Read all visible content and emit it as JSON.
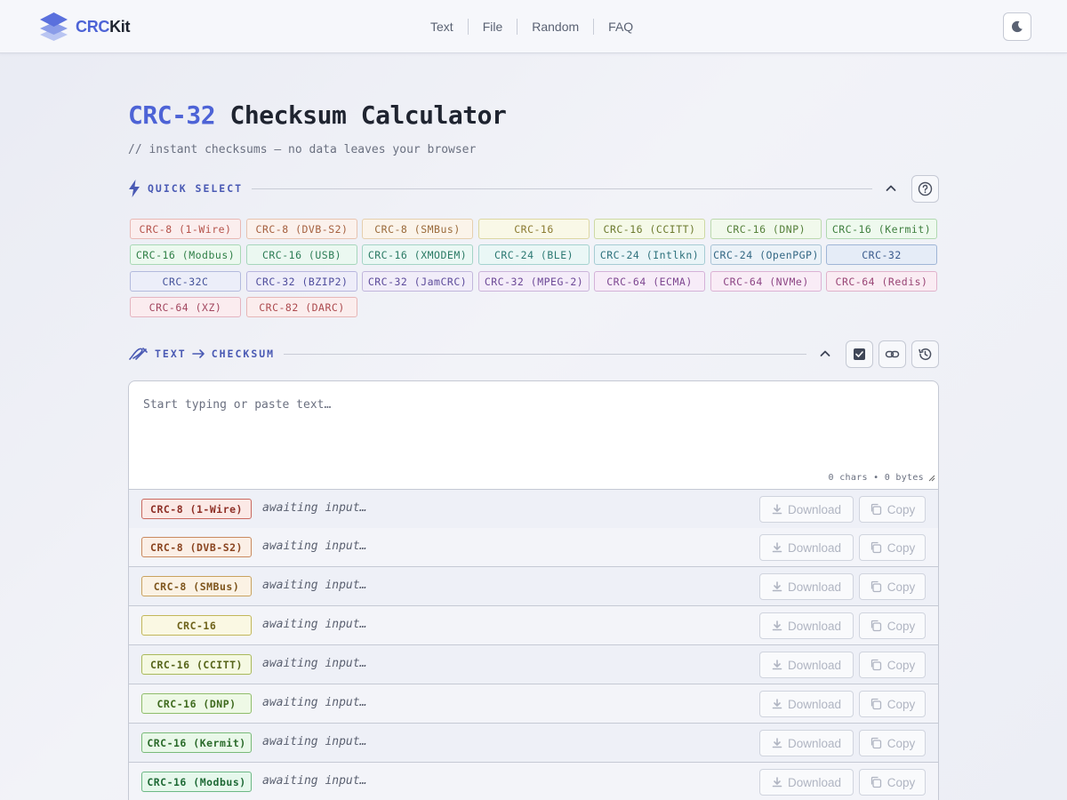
{
  "app": {
    "logo_a": "CRC",
    "logo_b": "Kit"
  },
  "nav": [
    "Text",
    "File",
    "Random",
    "FAQ"
  ],
  "page": {
    "title_accent": "CRC-32",
    "title_rest": "Checksum Calculator",
    "subtitle": "// instant checksums — no data leaves your browser"
  },
  "quick_select": {
    "label": "QUICK SELECT",
    "chips": [
      {
        "label": "CRC-8 (1-Wire)",
        "color": "#b5524a",
        "bg": "#fbeeee",
        "border": "#e8b8b4"
      },
      {
        "label": "CRC-8 (DVB-S2)",
        "color": "#a5603f",
        "bg": "#fbf1ec",
        "border": "#e7c3b0"
      },
      {
        "label": "CRC-8 (SMBus)",
        "color": "#9a6a3a",
        "bg": "#fbf4ea",
        "border": "#e5cfae"
      },
      {
        "label": "CRC-16",
        "color": "#8a7a30",
        "bg": "#f9f8e7",
        "border": "#dcd7a2"
      },
      {
        "label": "CRC-16 (CCITT)",
        "color": "#6c7a2e",
        "bg": "#f5f9e8",
        "border": "#cdd9a4"
      },
      {
        "label": "CRC-16 (DNP)",
        "color": "#55803a",
        "bg": "#f1f9ec",
        "border": "#bcd9ae"
      },
      {
        "label": "CRC-16 (Kermit)",
        "color": "#3f7f3f",
        "bg": "#eef9ee",
        "border": "#b0d8b0"
      },
      {
        "label": "CRC-16 (Modbus)",
        "color": "#2f7f46",
        "bg": "#ecf9ef",
        "border": "#a8d8b5"
      },
      {
        "label": "CRC-16 (USB)",
        "color": "#2c7c55",
        "bg": "#ebf8f1",
        "border": "#a6d6bc"
      },
      {
        "label": "CRC-16 (XMODEM)",
        "color": "#2a7a64",
        "bg": "#eaf8f4",
        "border": "#a4d4c6"
      },
      {
        "label": "CRC-24 (BLE)",
        "color": "#2b7872",
        "bg": "#eaf7f6",
        "border": "#a4d2cf"
      },
      {
        "label": "CRC-24 (Intlkn)",
        "color": "#2d717c",
        "bg": "#eaf5f8",
        "border": "#a6ccd4"
      },
      {
        "label": "CRC-24 (OpenPGP)",
        "color": "#336784",
        "bg": "#ebf2f8",
        "border": "#a9c3d6"
      },
      {
        "label": "CRC-32",
        "color": "#3a5a8c",
        "bg": "#e5ecf7",
        "border": "#9fb5d6"
      },
      {
        "label": "CRC-32C",
        "color": "#44529a",
        "bg": "#eceef9",
        "border": "#b3badd"
      },
      {
        "label": "CRC-32 (BZIP2)",
        "color": "#4e4c9c",
        "bg": "#eeedf9",
        "border": "#b8b6de"
      },
      {
        "label": "CRC-32 (JamCRC)",
        "color": "#5c4a9a",
        "bg": "#f1edf9",
        "border": "#c1b6dc"
      },
      {
        "label": "CRC-32 (MPEG-2)",
        "color": "#6c4896",
        "bg": "#f4ecf9",
        "border": "#cbb4da"
      },
      {
        "label": "CRC-64 (ECMA)",
        "color": "#7d4690",
        "bg": "#f7ecf8",
        "border": "#d4b2d8"
      },
      {
        "label": "CRC-64 (NVMe)",
        "color": "#8c4484",
        "bg": "#f9ecf6",
        "border": "#dcb2d4"
      },
      {
        "label": "CRC-64 (Redis)",
        "color": "#984474",
        "bg": "#faecf3",
        "border": "#e0b2cb"
      },
      {
        "label": "CRC-64 (XZ)",
        "color": "#a2465f",
        "bg": "#fbecef",
        "border": "#e4b4c0"
      },
      {
        "label": "CRC-82 (DARC)",
        "color": "#ac4a4e",
        "bg": "#fbeded",
        "border": "#e6b6b6"
      }
    ]
  },
  "text_section": {
    "label_a": "TEXT",
    "label_b": "CHECKSUM",
    "placeholder": "Start typing or paste text…",
    "counter": "0 chars • 0 bytes"
  },
  "results": {
    "status": "awaiting input…",
    "download_label": "Download",
    "copy_label": "Copy",
    "rows": [
      {
        "label": "CRC-8 (1-Wire)",
        "color": "#8e2f26",
        "bg": "#fbe9e6",
        "border": "#c9695f"
      },
      {
        "label": "CRC-8 (DVB-S2)",
        "color": "#8a4420",
        "bg": "#fbefe6",
        "border": "#c98a5f"
      },
      {
        "label": "CRC-8 (SMBus)",
        "color": "#7e551c",
        "bg": "#fbf2e4",
        "border": "#c9a25f"
      },
      {
        "label": "CRC-16",
        "color": "#6e621a",
        "bg": "#faf8e3",
        "border": "#c2b75a"
      },
      {
        "label": "CRC-16 (CCITT)",
        "color": "#56641a",
        "bg": "#f5f9e2",
        "border": "#a9b95a"
      },
      {
        "label": "CRC-16 (DNP)",
        "color": "#3e6a1e",
        "bg": "#eef9e6",
        "border": "#8fbd6a"
      },
      {
        "label": "CRC-16 (Kermit)",
        "color": "#2a6a2a",
        "bg": "#e9f8e9",
        "border": "#78ba78"
      },
      {
        "label": "CRC-16 (Modbus)",
        "color": "#1f6a36",
        "bg": "#e6f8ec",
        "border": "#6cb885"
      }
    ]
  },
  "icons": {
    "theme": "moon-icon",
    "help": "help-circle-icon",
    "collapse": "chevron-up-icon",
    "checkbox": "checkbox-icon",
    "link": "link-icon",
    "history": "history-icon",
    "download": "download-icon",
    "copy": "copy-icon"
  }
}
